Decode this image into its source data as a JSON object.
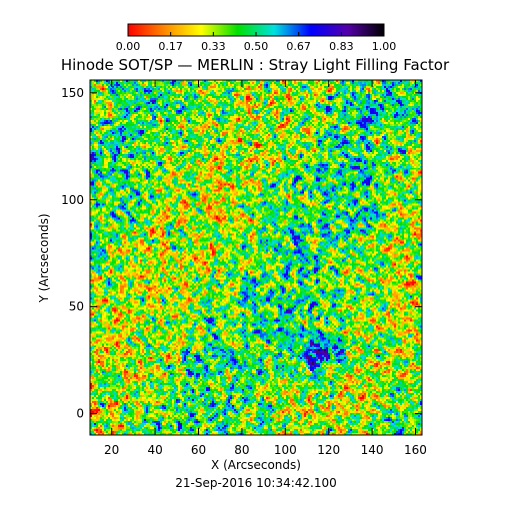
{
  "chart_data": {
    "type": "heatmap",
    "title": "Hinode SOT/SP — MERLIN : Stray Light Filling Factor",
    "xlabel": "X (Arcseconds)",
    "ylabel": "Y (Arcseconds)",
    "xlim": [
      10,
      163
    ],
    "ylim": [
      -10,
      156
    ],
    "xticks": [
      20,
      40,
      60,
      80,
      100,
      120,
      140,
      160
    ],
    "yticks": [
      0,
      50,
      100,
      150
    ],
    "colorbar": {
      "range": [
        0.0,
        1.0
      ],
      "ticks": [
        "0.00",
        "0.17",
        "0.33",
        "0.50",
        "0.67",
        "0.83",
        "1.00"
      ],
      "colormap": [
        "#ff0000",
        "#ff8800",
        "#ffff00",
        "#00e000",
        "#00e0e0",
        "#0000ff",
        "#5500aa",
        "#000000"
      ]
    },
    "field": {
      "typical_value": 0.4,
      "pattern": "granular noise",
      "dense_blue_patch_center": [
        117,
        30
      ]
    },
    "footer": "21-Sep-2016 10:34:42.100"
  }
}
